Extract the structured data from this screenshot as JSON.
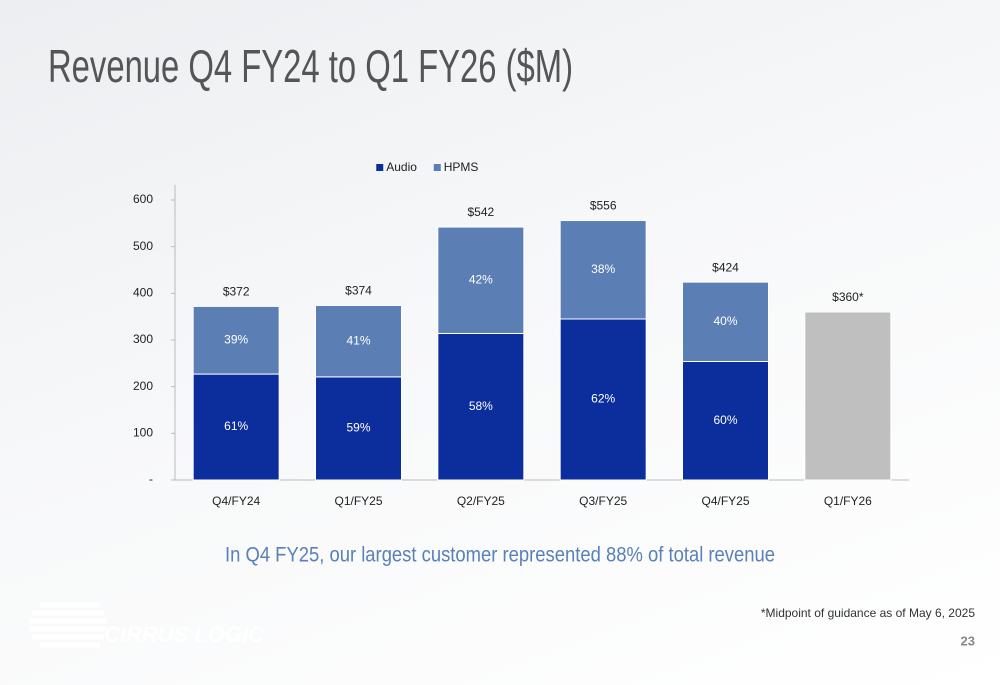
{
  "chart_data": {
    "type": "stacked_bar",
    "title": "Revenue Q4 FY24 to Q1 FY26 ($M)",
    "categories": [
      "Q4/FY24",
      "Q1/FY25",
      "Q2/FY25",
      "Q3/FY25",
      "Q4/FY25",
      "Q1/FY26"
    ],
    "series": [
      {
        "name": "Audio",
        "color": "#0b2e9c",
        "values": [
          227,
          221,
          314,
          345,
          254,
          null
        ],
        "share_labels": [
          "61%",
          "59%",
          "58%",
          "62%",
          "60%",
          null
        ]
      },
      {
        "name": "HPMS",
        "color": "#5b7fb5",
        "values": [
          145,
          153,
          228,
          211,
          170,
          null
        ],
        "share_labels": [
          "39%",
          "41%",
          "42%",
          "38%",
          "40%",
          null
        ]
      },
      {
        "color": "#bfbfbf",
        "values": [
          null,
          null,
          null,
          null,
          null,
          360
        ]
      }
    ],
    "totals": {
      "values": [
        372,
        374,
        542,
        556,
        424,
        360
      ],
      "value_labels": [
        "$372",
        "$374",
        "$542",
        "$556",
        "$424",
        "$360*"
      ]
    },
    "ylim": [
      0,
      600
    ],
    "yticks": [
      {
        "value": 0,
        "label": "-"
      },
      100,
      200,
      300,
      400,
      500,
      600
    ],
    "grid": false,
    "legend": "top"
  },
  "callout": "In Q4 FY25, our largest customer represented 88% of total revenue",
  "footnote": "*Midpoint of guidance as of May 6, 2025",
  "page_number": "23",
  "logo": "CIRRUS LOGIC"
}
